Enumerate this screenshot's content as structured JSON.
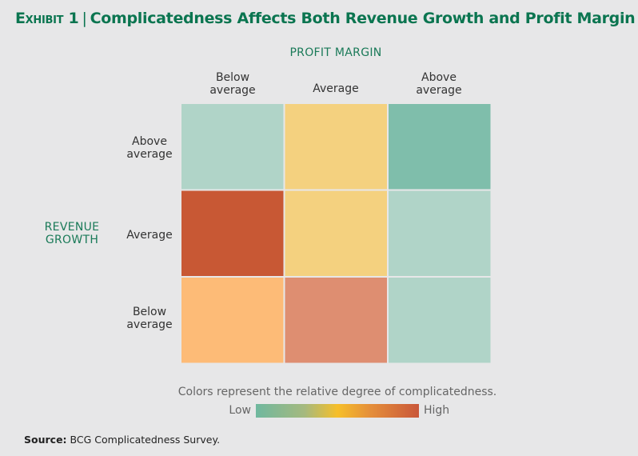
{
  "title": {
    "exhibit": "Exhibit 1",
    "separator": "|",
    "text": "Complicatedness Affects Both Revenue Growth and Profit Margin"
  },
  "chart_data": {
    "type": "heatmap",
    "title": "Complicatedness Affects Both Revenue Growth and Profit Margin",
    "xlabel": "PROFIT MARGIN",
    "ylabel": "REVENUE GROWTH",
    "x_categories": [
      "Below average",
      "Average",
      "Above average"
    ],
    "y_categories": [
      "Above average",
      "Average",
      "Below average"
    ],
    "value_description": "relative degree of complicatedness (0 = low, 1 = high)",
    "cells": [
      {
        "row": "Above average",
        "col": "Below average",
        "level": 0.15,
        "color": "#b0d4c8"
      },
      {
        "row": "Above average",
        "col": "Average",
        "level": 0.45,
        "color": "#f4d17f"
      },
      {
        "row": "Above average",
        "col": "Above average",
        "level": 0.0,
        "color": "#7fbeab"
      },
      {
        "row": "Average",
        "col": "Below average",
        "level": 1.0,
        "color": "#c85834"
      },
      {
        "row": "Average",
        "col": "Average",
        "level": 0.45,
        "color": "#f4d17f"
      },
      {
        "row": "Average",
        "col": "Above average",
        "level": 0.15,
        "color": "#b0d4c8"
      },
      {
        "row": "Below average",
        "col": "Below average",
        "level": 0.6,
        "color": "#fdbb77"
      },
      {
        "row": "Below average",
        "col": "Average",
        "level": 0.8,
        "color": "#de8e71"
      },
      {
        "row": "Below average",
        "col": "Above average",
        "level": 0.15,
        "color": "#b0d4c8"
      }
    ],
    "legend": {
      "caption": "Colors represent the relative degree of complicatedness.",
      "low": "Low",
      "high": "High",
      "colors": [
        "#6fb89f",
        "#f6bf2a",
        "#c9573a"
      ]
    }
  },
  "axis_labels": {
    "x_title": "PROFIT MARGIN",
    "y_title_line1": "REVENUE",
    "y_title_line2": "GROWTH",
    "x_ticks": [
      [
        "Below",
        "average"
      ],
      [
        "Average",
        ""
      ],
      [
        "Above",
        "average"
      ]
    ],
    "y_ticks": [
      [
        "Above",
        "average"
      ],
      [
        "Average",
        ""
      ],
      [
        "Below",
        "average"
      ]
    ]
  },
  "source": {
    "label": "Source:",
    "text": "BCG Complicatedness Survey."
  }
}
